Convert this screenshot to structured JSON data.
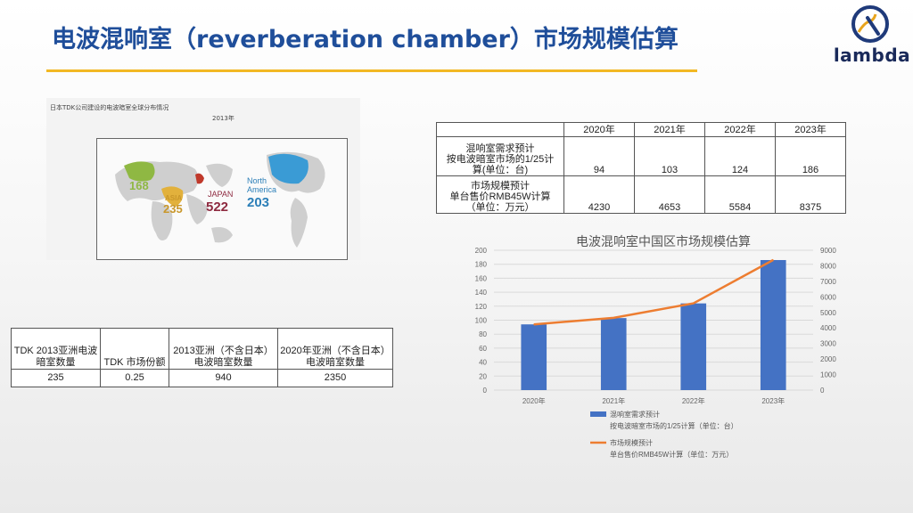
{
  "title": "电波混响室（reverberation chamber）市场规模估算",
  "logo": {
    "text": "lambda"
  },
  "map": {
    "caption": "日本TDK公司建设的电波暗室全球分布情况",
    "year": "2013年",
    "regions": [
      {
        "name": "EU",
        "value": "168"
      },
      {
        "name": "ASIA",
        "value": "235"
      },
      {
        "name": "JAPAN",
        "value": "522"
      },
      {
        "name": "North America",
        "value": "203"
      }
    ]
  },
  "forecast_table": {
    "years": [
      "2020年",
      "2021年",
      "2022年",
      "2023年"
    ],
    "rows": [
      {
        "label_lines": [
          "混响室需求预计",
          "按电波暗室市场的1/25计",
          "算(单位：台)"
        ],
        "values": [
          "94",
          "103",
          "124",
          "186"
        ]
      },
      {
        "label_lines": [
          "市场规模预计",
          "单台售价RMB45W计算",
          "（单位：万元）"
        ],
        "values": [
          "4230",
          "4653",
          "5584",
          "8375"
        ]
      }
    ]
  },
  "share_table": {
    "headers": [
      [
        "TDK 2013亚洲电波",
        "暗室数量"
      ],
      [
        "TDK 市场份额"
      ],
      [
        "2013亚洲（不含日本）",
        "电波暗室数量"
      ],
      [
        "2020年亚洲（不含日本）",
        "电波暗室数量"
      ]
    ],
    "values": [
      "235",
      "0.25",
      "940",
      "2350"
    ]
  },
  "chart_data": {
    "type": "bar+line",
    "title": "电波混响室中国区市场规模估算",
    "categories": [
      "2020年",
      "2021年",
      "2022年",
      "2023年"
    ],
    "series": [
      {
        "name": "混响室需求预计 按电波暗室市场的1/25计算（单位：台）",
        "type": "bar",
        "axis": "left",
        "values": [
          94,
          103,
          124,
          186
        ]
      },
      {
        "name": "市场规模预计 单台售价RMB45W计算（单位：万元）",
        "type": "line",
        "axis": "right",
        "values": [
          4230,
          4653,
          5584,
          8375
        ]
      }
    ],
    "y_left": {
      "min": 0,
      "max": 200,
      "step": 20
    },
    "y_right": {
      "min": 0,
      "max": 9000,
      "step": 1000
    },
    "legend": [
      {
        "line1": "混响室需求预计",
        "line2": "按电波暗室市场的1/25计算（单位：台）"
      },
      {
        "line1": "市场规模预计",
        "line2": "单台售价RMB45W计算（单位：万元）"
      }
    ],
    "colors": {
      "bar": "#4472c4",
      "line": "#ed7d31",
      "grid": "#d9d9d9"
    },
    "grid": true,
    "legend_position": "bottom"
  }
}
